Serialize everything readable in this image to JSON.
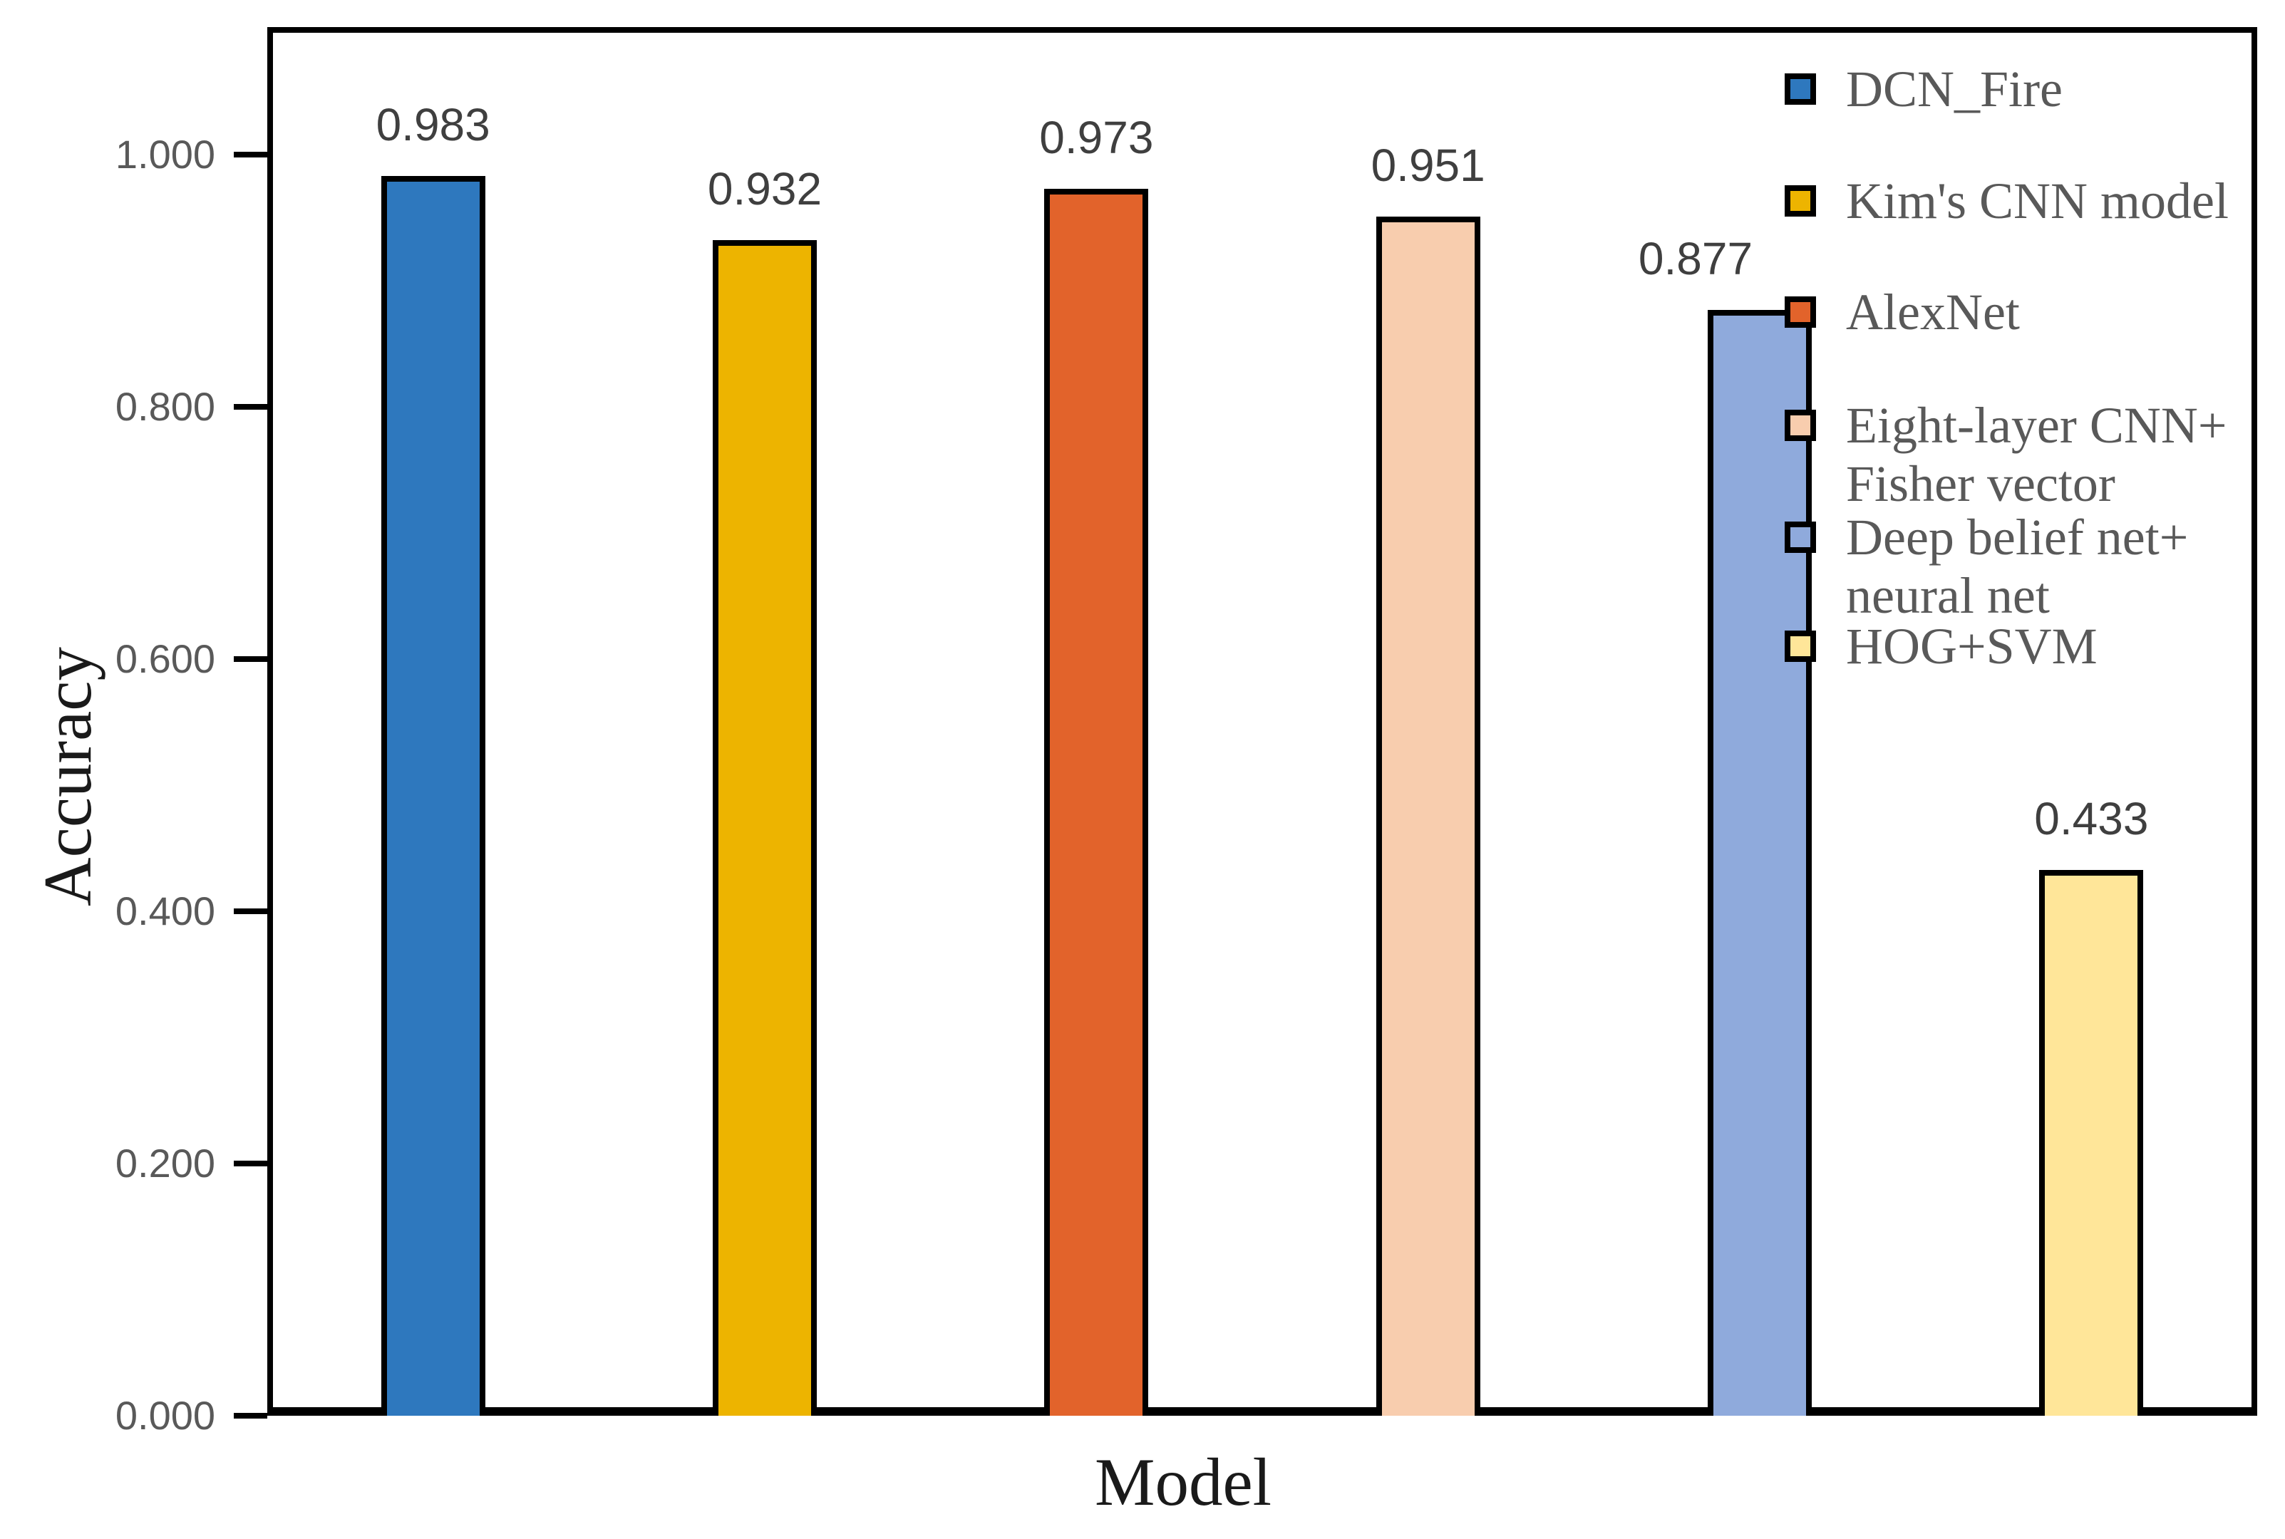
{
  "chart_data": {
    "type": "bar",
    "title": "",
    "xlabel": "Model",
    "ylabel": "Accuracy",
    "categories": [
      "DCN_Fire",
      "Kim's CNN model",
      "AlexNet",
      "Eight-layer CNN+ Fisher vector",
      "Deep belief net+ neural net",
      "HOG+SVM"
    ],
    "values": [
      0.983,
      0.932,
      0.973,
      0.951,
      0.877,
      0.433
    ],
    "value_labels": [
      "0.983",
      "0.932",
      "0.973",
      "0.951",
      "0.877",
      "0.433"
    ],
    "bar_colors": [
      "#2E78BE",
      "#EDB400",
      "#E2632B",
      "#F8CDAE",
      "#8FAADC",
      "#FFE699"
    ],
    "bar_border_color": "#000000",
    "ylim": [
      0.0,
      1.1
    ],
    "yticks": [
      0.0,
      0.2,
      0.4,
      0.6,
      0.8,
      1.0
    ],
    "ytick_labels": [
      "0.000",
      "0.200",
      "0.400",
      "0.600",
      "0.800",
      "1.000"
    ],
    "grid": false,
    "legend_position": "inside-top-right",
    "legend": [
      {
        "label_lines": [
          "DCN_Fire"
        ],
        "color": "#2E78BE"
      },
      {
        "label_lines": [
          "Kim's CNN model"
        ],
        "color": "#EDB400"
      },
      {
        "label_lines": [
          "AlexNet"
        ],
        "color": "#E2632B"
      },
      {
        "label_lines": [
          "Eight-layer CNN+",
          "Fisher vector"
        ],
        "color": "#F8CDAE"
      },
      {
        "label_lines": [
          "Deep belief net+",
          "neural net"
        ],
        "color": "#8FAADC"
      },
      {
        "label_lines": [
          "HOG+SVM"
        ],
        "color": "#FFE699"
      }
    ]
  }
}
